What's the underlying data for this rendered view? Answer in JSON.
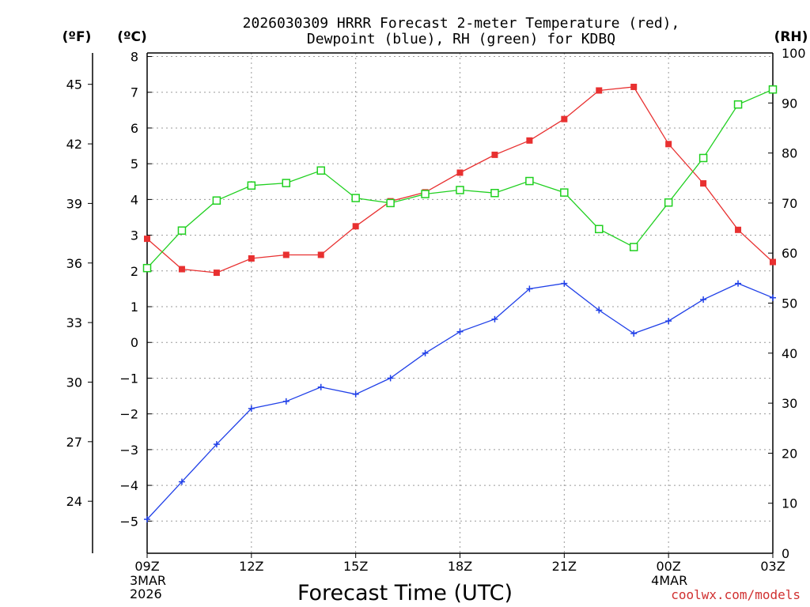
{
  "chart_data": {
    "type": "line",
    "title_line1": "2026030309 HRRR Forecast 2-meter Temperature (red),",
    "title_line2": "Dewpoint (blue), RH (green) for KDBQ",
    "xlabel": "Forecast Time (UTC)",
    "units": {
      "fahrenheit": "(ºF)",
      "celsius": "(ºC)",
      "rh": "(RH)"
    },
    "credit": "coolwx.com/models",
    "x_hours": [
      0,
      1,
      2,
      3,
      4,
      5,
      6,
      7,
      8,
      9,
      10,
      11,
      12,
      13,
      14,
      15,
      16,
      17,
      18
    ],
    "x_range": [
      0,
      18
    ],
    "x_ticks": [
      {
        "hour": 0,
        "label": "09Z",
        "sub1": "3MAR",
        "sub2": "2026"
      },
      {
        "hour": 3,
        "label": "12Z",
        "sub1": "",
        "sub2": ""
      },
      {
        "hour": 6,
        "label": "15Z",
        "sub1": "",
        "sub2": ""
      },
      {
        "hour": 9,
        "label": "18Z",
        "sub1": "",
        "sub2": ""
      },
      {
        "hour": 12,
        "label": "21Z",
        "sub1": "",
        "sub2": ""
      },
      {
        "hour": 15,
        "label": "00Z",
        "sub1": "4MAR",
        "sub2": ""
      },
      {
        "hour": 18,
        "label": "03Z",
        "sub1": "",
        "sub2": ""
      }
    ],
    "y_celsius": {
      "range": [
        -5.9,
        8.1
      ],
      "ticks": [
        "8",
        "7",
        "6",
        "5",
        "4",
        "3",
        "2",
        "1",
        "0",
        "−1",
        "−2",
        "−3",
        "−4",
        "−5"
      ],
      "tick_values": [
        8,
        7,
        6,
        5,
        4,
        3,
        2,
        1,
        0,
        -1,
        -2,
        -3,
        -4,
        -5
      ]
    },
    "y_fahrenheit": {
      "ticks": [
        "45",
        "42",
        "39",
        "36",
        "33",
        "30",
        "27",
        "24"
      ],
      "tick_values": [
        45,
        42,
        39,
        36,
        33,
        30,
        27,
        24
      ]
    },
    "y_rh": {
      "range": [
        0,
        100
      ],
      "ticks": [
        "100",
        "90",
        "80",
        "70",
        "60",
        "50",
        "40",
        "30",
        "20",
        "10",
        "0"
      ],
      "tick_values": [
        100,
        90,
        80,
        70,
        60,
        50,
        40,
        30,
        20,
        10,
        0
      ]
    },
    "series": [
      {
        "name": "2-meter Temperature",
        "unit": "C",
        "color": "#e83030",
        "marker": "filled-square",
        "values": [
          2.9,
          2.05,
          1.95,
          2.35,
          2.45,
          2.45,
          3.25,
          3.95,
          4.2,
          4.75,
          5.25,
          5.65,
          6.25,
          7.05,
          7.15,
          5.55,
          4.45,
          3.15,
          2.25
        ]
      },
      {
        "name": "Dewpoint",
        "unit": "C",
        "color": "#2040e8",
        "marker": "plus",
        "values": [
          -4.95,
          -3.9,
          -2.85,
          -1.85,
          -1.65,
          -1.25,
          -1.45,
          -1.0,
          -0.3,
          0.3,
          0.65,
          1.5,
          1.65,
          0.9,
          0.25,
          0.6,
          1.2,
          1.65,
          1.25
        ]
      },
      {
        "name": "RH",
        "unit": "%",
        "color": "#20d020",
        "marker": "open-square",
        "values": [
          57,
          64.5,
          70.5,
          73.5,
          74,
          76.5,
          71,
          70,
          71.8,
          72.6,
          72,
          74.4,
          72.1,
          64.8,
          61.2,
          70.1,
          79,
          89.7,
          92.7
        ]
      }
    ]
  }
}
